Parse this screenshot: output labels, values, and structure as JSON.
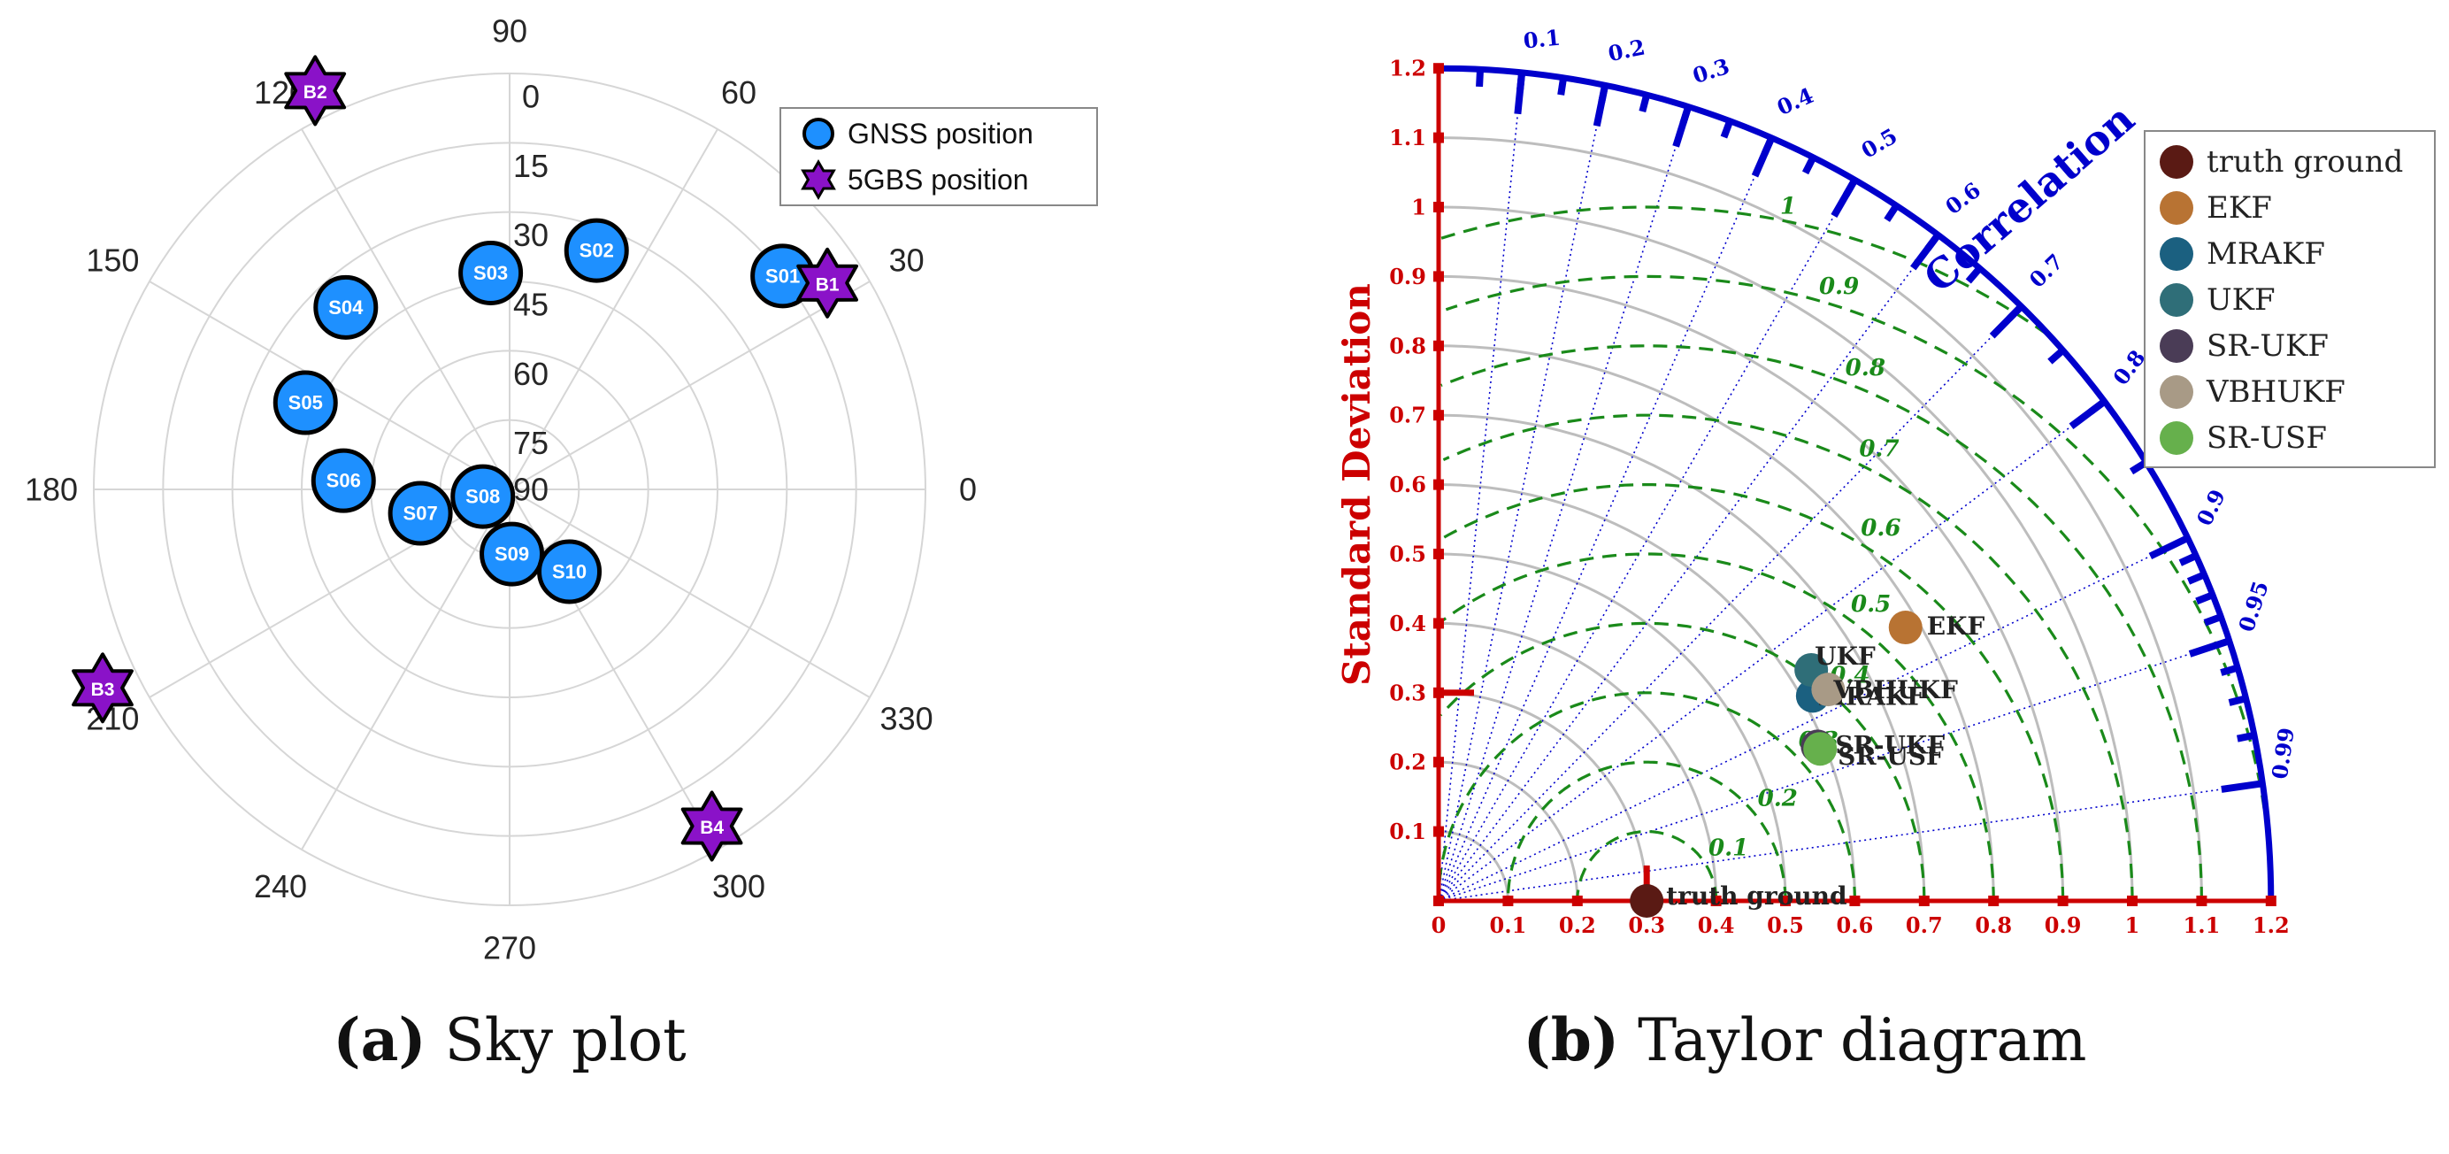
{
  "colors": {
    "sky_grid": "#d6d6d6",
    "sky_text": "#262626",
    "gnss_fill": "#1e90ff",
    "bs_fill": "#8a12c8",
    "taylor_red": "#cc0000",
    "taylor_blue": "#0000cc",
    "taylor_green": "#1a8a1a",
    "taylor_gray": "#bdbdbd",
    "caption": "#111111"
  },
  "captions": {
    "a": {
      "letter": "(a)",
      "text": " Sky plot"
    },
    "b": {
      "letter": "(b)",
      "text": " Taylor diagram"
    }
  },
  "chart_data": [
    {
      "type": "scatter",
      "subtype": "polar-sky-plot",
      "title": "Sky plot",
      "elevation_ticks": [
        0,
        15,
        30,
        45,
        60,
        75,
        90
      ],
      "elevation_labels": [
        "0",
        "15",
        "30",
        "45",
        "60",
        "75",
        "90"
      ],
      "azimuth_ticks": [
        0,
        30,
        60,
        90,
        120,
        150,
        180,
        210,
        240,
        270,
        300,
        330
      ],
      "azimuth_labels": [
        "0",
        "30",
        "60",
        "90",
        "120",
        "150",
        "180",
        "210",
        "240",
        "270",
        "300",
        "330"
      ],
      "legend": {
        "position": "top-right",
        "entries": [
          "GNSS position",
          "5GBS position"
        ]
      },
      "series": [
        {
          "name": "GNSS position",
          "marker": "circle",
          "points": [
            {
              "label": "S01",
              "azimuth": 38,
              "elevation": 15
            },
            {
              "label": "S02",
              "azimuth": 70,
              "elevation": 35
            },
            {
              "label": "S03",
              "azimuth": 95,
              "elevation": 43
            },
            {
              "label": "S04",
              "azimuth": 132,
              "elevation": 37
            },
            {
              "label": "S05",
              "azimuth": 157,
              "elevation": 42
            },
            {
              "label": "S06",
              "azimuth": 177,
              "elevation": 54
            },
            {
              "label": "S07",
              "azimuth": 195,
              "elevation": 70
            },
            {
              "label": "S08",
              "azimuth": 195,
              "elevation": 84
            },
            {
              "label": "S09",
              "azimuth": 272,
              "elevation": 76
            },
            {
              "label": "S10",
              "azimuth": 306,
              "elevation": 68
            }
          ]
        },
        {
          "name": "5GBS position",
          "marker": "hexagram",
          "points": [
            {
              "label": "B1",
              "azimuth": 33,
              "elevation": 8
            },
            {
              "label": "B2",
              "azimuth": 116,
              "elevation": -6
            },
            {
              "label": "B3",
              "azimuth": 206,
              "elevation": -8
            },
            {
              "label": "B4",
              "azimuth": 301,
              "elevation": 5
            }
          ]
        }
      ]
    },
    {
      "type": "scatter",
      "subtype": "taylor-diagram",
      "title": "Taylor diagram",
      "ylabel": "Standard Deviation",
      "arc_label": "Correlation",
      "std_range": [
        0,
        1.2
      ],
      "std_ticks": [
        0,
        0.1,
        0.2,
        0.3,
        0.4,
        0.5,
        0.6,
        0.7,
        0.8,
        0.9,
        1,
        1.1,
        1.2
      ],
      "std_tick_labels": [
        "0",
        "0.1",
        "0.2",
        "0.3",
        "0.4",
        "0.5",
        "0.6",
        "0.7",
        "0.8",
        "0.9",
        "1",
        "1.1",
        "1.2"
      ],
      "correlation_ticks": [
        0.1,
        0.2,
        0.3,
        0.4,
        0.5,
        0.6,
        0.7,
        0.8,
        0.9,
        0.95,
        0.99
      ],
      "correlation_labels": [
        "0.1",
        "0.2",
        "0.3",
        "0.4",
        "0.5",
        "0.6",
        "0.7",
        "0.8",
        "0.9",
        "0.95",
        "0.99"
      ],
      "reference_std": 0.3,
      "rmsd_contours": [
        0.1,
        0.2,
        0.3,
        0.4,
        0.5,
        0.6,
        0.7,
        0.8,
        0.9,
        1
      ],
      "rmsd_labels": [
        "0.1",
        "0.2",
        "0.3",
        "0.4",
        "0.5",
        "0.6",
        "0.7",
        "0.8",
        "0.9",
        "1"
      ],
      "legend": {
        "position": "top-right",
        "entries": [
          "truth ground",
          "EKF",
          "MRAKF",
          "UKF",
          "SR-UKF",
          "VBHUKF",
          "SR-USF"
        ]
      },
      "series": [
        {
          "name": "truth ground",
          "color": "#5a1a14",
          "std": 0.3,
          "corr": 1.0,
          "label": "truth ground"
        },
        {
          "name": "EKF",
          "color": "#b87333",
          "std": 0.78,
          "corr": 0.863,
          "label": "EKF"
        },
        {
          "name": "MRAKF",
          "color": "#1b6080",
          "std": 0.615,
          "corr": 0.877,
          "label": "MRAKF"
        },
        {
          "name": "UKF",
          "color": "#2f6e78",
          "std": 0.632,
          "corr": 0.85,
          "label": "UKF"
        },
        {
          "name": "SR-UKF",
          "color": "#4a3c56",
          "std": 0.59,
          "corr": 0.926,
          "label": "SR-UKF"
        },
        {
          "name": "VBHUKF",
          "color": "#a89a86",
          "std": 0.639,
          "corr": 0.879,
          "label": "VBHUKF"
        },
        {
          "name": "SR-USF",
          "color": "#66b04c",
          "std": 0.592,
          "corr": 0.929,
          "label": "SR-USF"
        }
      ]
    }
  ]
}
